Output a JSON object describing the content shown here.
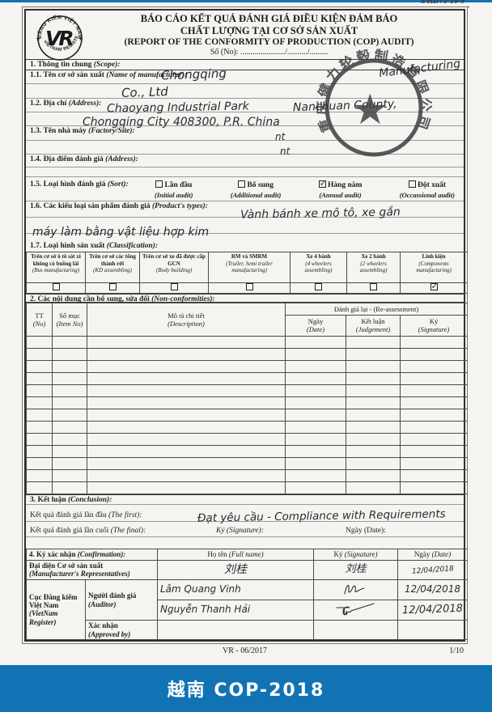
{
  "page": {
    "corner_ref": "5/HD75-10-9",
    "footer_code": "VR - 06/2017",
    "footer_page": "1/10",
    "bottom_bar": "越南 COP-2018",
    "accent_blue": "#1173b3"
  },
  "header": {
    "logo": {
      "top_text": "ĐĂNG KIỂM VIỆT NAM",
      "bottom_text": "VIETNAM REGISTER",
      "monogram": "VR",
      "star": "★"
    },
    "title_line1": "BÁO CÁO KẾT QUẢ ĐÁNH GIÁ ĐIỀU KIỆN ĐẢM BẢO",
    "title_line2": "CHẤT LƯỢNG TẠI CƠ SỞ SẢN XUẤT",
    "title_line3": "(REPORT OF THE CONFORMITY OF PRODUCTION (COP) AUDIT)",
    "so_no": "Số (No): ....................../........../........."
  },
  "stamp": {
    "text": "重庆健力轮毂制造有限公司",
    "star": "★"
  },
  "section1": {
    "heading_vi": "1. Thông tin chung",
    "heading_en": "(Scope):",
    "f11_vi": "1.1. Tên cơ sở sản xuất",
    "f11_en": "(Name of manufacturer):",
    "f11_value_part1": "Chongqing",
    "f11_value_part2": "Manufacturing",
    "f11_value_line2": "Co., Ltd",
    "f12_vi": "1.2. Địa chỉ",
    "f12_en": "(Address):",
    "f12_value_part1": "Chaoyang Industrial Park",
    "f12_value_part2": "Nanchuan County,",
    "f12_value_line2": "Chongqing City 408300, P.R. China",
    "f13_vi": "1.3. Tên nhà máy",
    "f13_en": "(Factory/Site):",
    "f13_value": "nt",
    "f13_value_extra": "nt",
    "f14_vi": "1.4. Địa điểm đánh giá",
    "f14_en": "(Address):",
    "f15_vi": "1.5. Loại hình đánh giá",
    "f15_en": "(Sort):",
    "f15_options": [
      {
        "vi": "Lần đầu",
        "en": "(Initial audit)",
        "checked": false
      },
      {
        "vi": "Bổ sung",
        "en": "(Additional audit)",
        "checked": false
      },
      {
        "vi": "Hàng năm",
        "en": "(Annual audit)",
        "checked": true
      },
      {
        "vi": "Đột xuất",
        "en": "(Occassional audit)",
        "checked": false
      }
    ],
    "f16_vi": "1.6. Các kiểu loại sản phẩm đánh giá",
    "f16_en": "(Product's types):",
    "f16_value_line1": "Vành bánh xe mô tô, xe gắn",
    "f16_value_line2": "máy làm bằng vật liệu hợp kim",
    "f17_vi": "1.7. Loại hình sản xuất",
    "f17_en": "(Classification):",
    "f17_columns": [
      {
        "vi": "Trên cơ sở ô tô sát xi không có buồng lái",
        "en": "(Bus manufacturing)",
        "checked": false
      },
      {
        "vi": "Trên cơ sở các tổng thành rời",
        "en": "(KD assembling)",
        "checked": false
      },
      {
        "vi": "Trên cơ sở xe đã được cấp GCN",
        "en": "(Body building)",
        "checked": false
      },
      {
        "vi": "RM và SMRM",
        "en": "(Trailer, Semi trailer manufacturing)",
        "checked": false
      },
      {
        "vi": "Xe 4 bánh",
        "en": "(4 wheelers assembling)",
        "checked": false
      },
      {
        "vi": "Xe 2 bánh",
        "en": "(2 wheelers assembling)",
        "checked": false
      },
      {
        "vi": "Linh kiện",
        "en": "(Components manufacturing)",
        "checked": true
      }
    ]
  },
  "section2": {
    "heading_vi": "2. Các nội dung cần bổ sung, sửa đổi",
    "heading_en": "(Non-conformities):",
    "group_header": "Đánh giá lại - (Re-assessment)",
    "col_tt_vi": "TT",
    "col_tt_en": "(No)",
    "col_item_vi": "Số mục",
    "col_item_en": "(Item No)",
    "col_desc_vi": "Mô tả chi tiết",
    "col_desc_en": "(Description)",
    "col_date_vi": "Ngày",
    "col_date_en": "(Date)",
    "col_judge_vi": "Kết luận",
    "col_judge_en": "(Judgement)",
    "col_sign_vi": "Ký",
    "col_sign_en": "(Signature)",
    "empty_row_count": 13
  },
  "section3": {
    "heading_vi": "3. Kết luận",
    "heading_en": "(Conclusion):",
    "first_vi": "Kết quả đánh giá lần đầu",
    "first_en": "(The first):",
    "first_value": "Đạt yêu cầu - Compliance with Requirements",
    "final_vi": "Kết quả đánh giá lần cuối",
    "final_en": "(The final):",
    "sign_label": "Ký (Signature):",
    "date_label": "Ngày (Date):"
  },
  "section4": {
    "heading_vi": "4. Ký xác nhận",
    "heading_en": "(Confirmation):",
    "col_name_vi": "Họ tên",
    "col_name_en": "(Full name)",
    "col_sign_vi": "Ký",
    "col_sign_en": "(Signature)",
    "col_date_vi": "Ngày",
    "col_date_en": "(Date)",
    "row1_label_vi": "Đại diện Cơ sở sản xuất",
    "row1_label_en": "(Manufacturer's Representatives)",
    "row1_name": "刘桂",
    "row1_sign": "刘桂",
    "row1_date": "12/04/2018",
    "vr_label_vi": "Cục Đăng kiểm Việt Nam",
    "vr_label_en": "(VietNam Register)",
    "auditor_label_vi": "Người đánh giá",
    "auditor_label_en": "(Auditor)",
    "auditor1_name": "Lâm Quang Vinh",
    "auditor1_date": "12/04/2018",
    "auditor2_name": "Nguyễn Thanh Hải",
    "auditor2_date": "12/04/2018",
    "approved_label_vi": "Xác nhận",
    "approved_label_en": "(Approved by)"
  }
}
